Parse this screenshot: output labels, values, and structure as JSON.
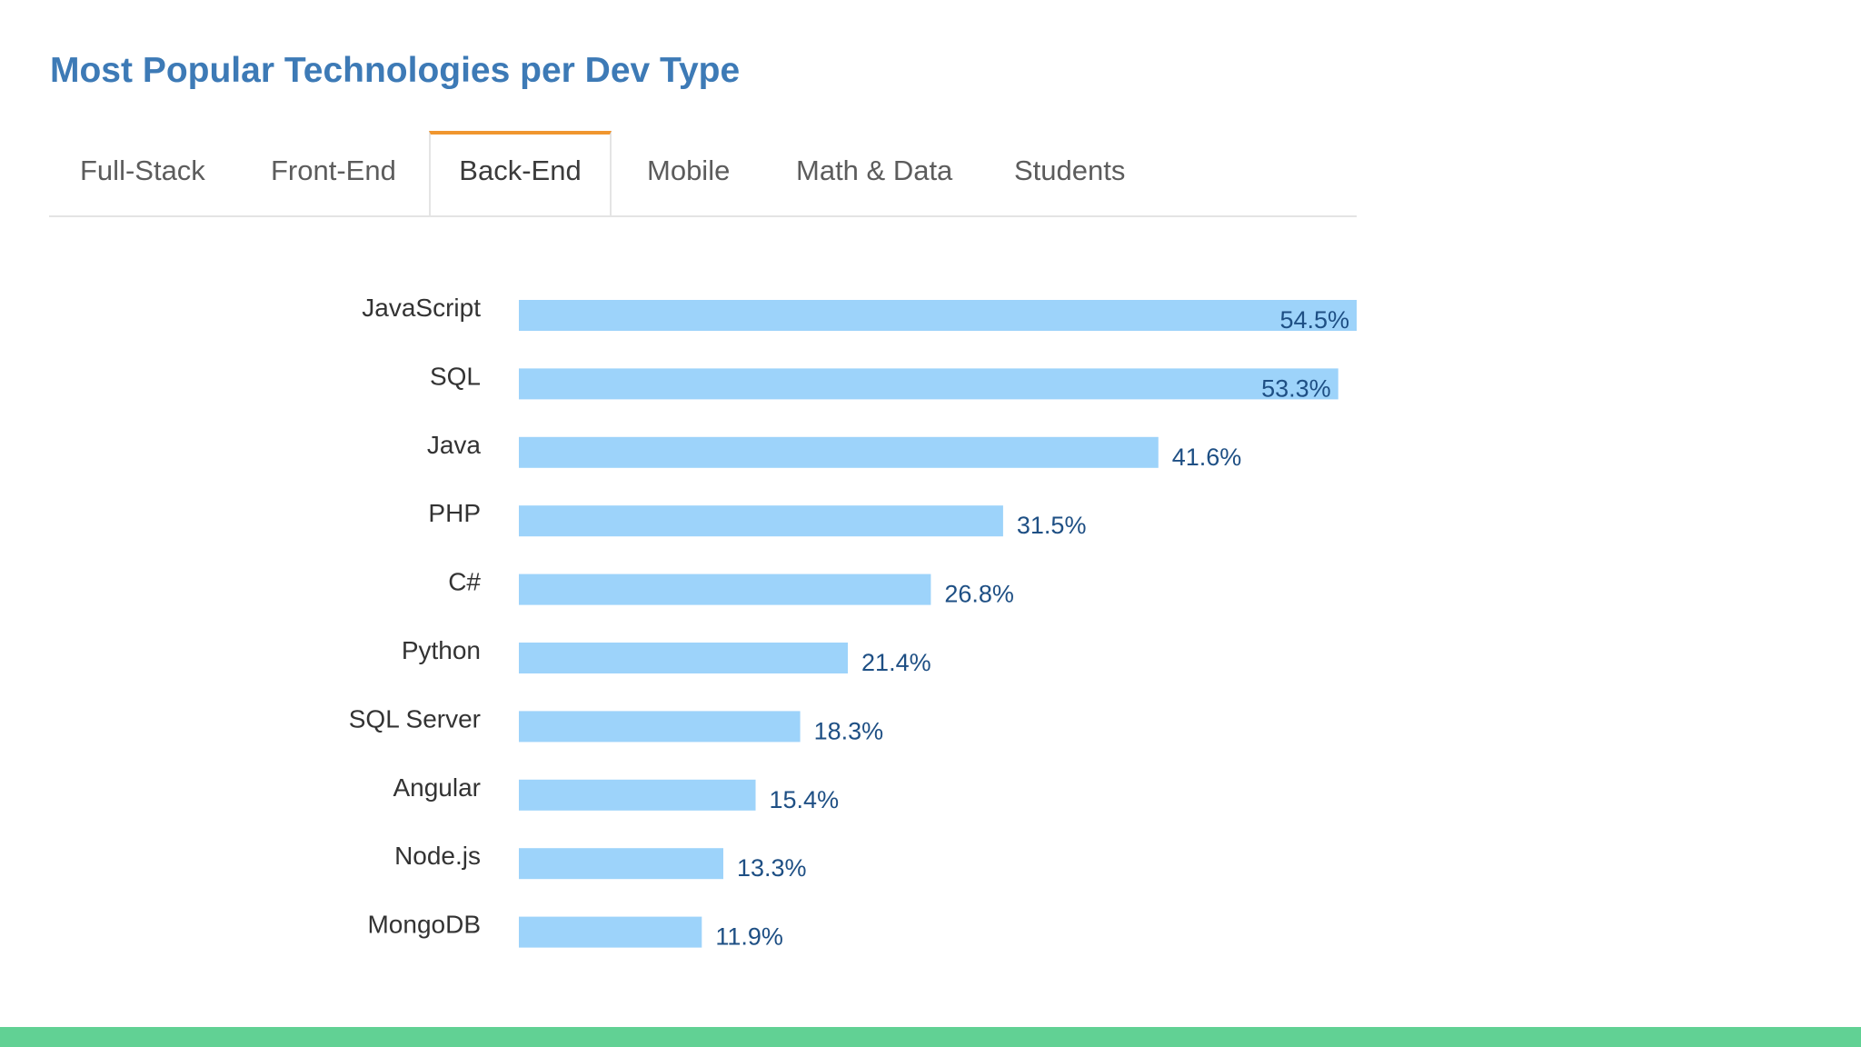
{
  "title": "Most Popular Technologies per Dev Type",
  "tabs": [
    {
      "label": "Full-Stack",
      "active": false
    },
    {
      "label": "Front-End",
      "active": false
    },
    {
      "label": "Back-End",
      "active": true
    },
    {
      "label": "Mobile",
      "active": false
    },
    {
      "label": "Math & Data",
      "active": false
    },
    {
      "label": "Students",
      "active": false
    }
  ],
  "colors": {
    "title": "#3d7ab6",
    "bar": "#9dd3fa",
    "value_label": "#1e4f84",
    "category_label": "#333333",
    "active_tab_accent": "#f0962f",
    "bottom_bar": "#61d194"
  },
  "chart_data": {
    "type": "bar",
    "orientation": "horizontal",
    "categories": [
      "JavaScript",
      "SQL",
      "Java",
      "PHP",
      "C#",
      "Python",
      "SQL Server",
      "Angular",
      "Node.js",
      "MongoDB"
    ],
    "values": [
      54.5,
      53.3,
      41.6,
      31.5,
      26.8,
      21.4,
      18.3,
      15.4,
      13.3,
      11.9
    ],
    "value_labels": [
      "54.5%",
      "53.3%",
      "41.6%",
      "31.5%",
      "26.8%",
      "21.4%",
      "18.3%",
      "15.4%",
      "13.3%",
      "11.9%"
    ],
    "unit": "%",
    "xlim": [
      0,
      54.5
    ],
    "grid": false
  }
}
